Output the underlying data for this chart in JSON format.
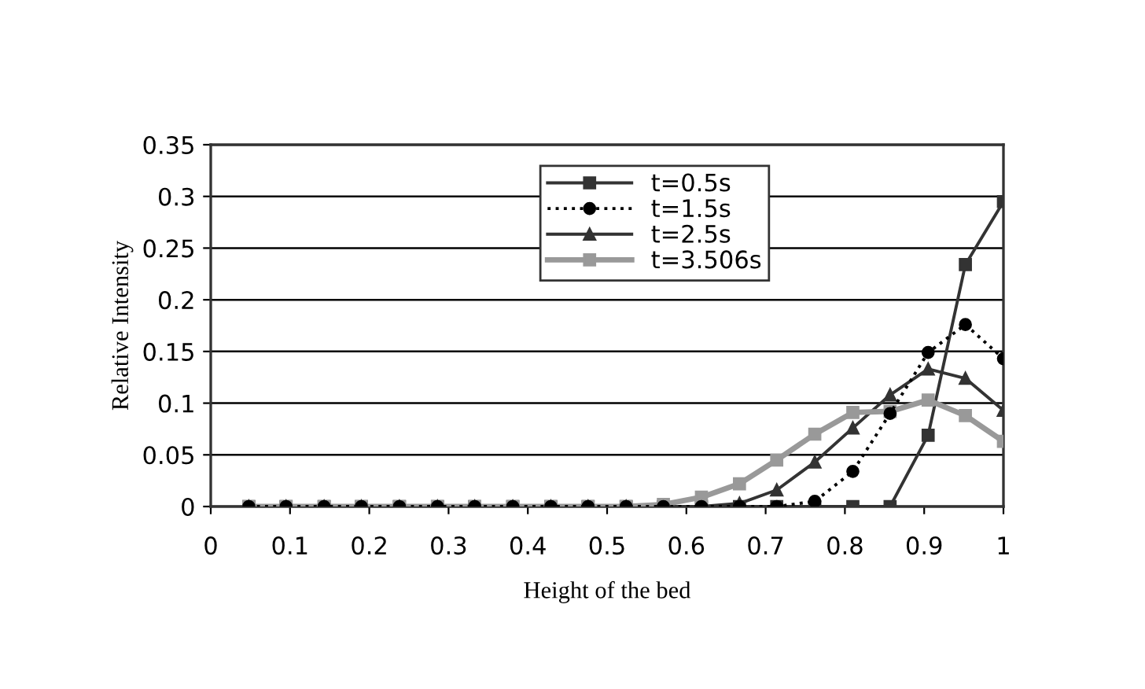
{
  "chart_data": {
    "type": "line",
    "xlabel": "Height of the bed",
    "ylabel": "Relative Intensity",
    "x": [
      0.048,
      0.095,
      0.143,
      0.19,
      0.238,
      0.286,
      0.333,
      0.381,
      0.429,
      0.476,
      0.524,
      0.571,
      0.619,
      0.667,
      0.714,
      0.762,
      0.81,
      0.857,
      0.905,
      0.952,
      1.0
    ],
    "series": [
      {
        "name": "t=0.5s",
        "color": "#333333",
        "marker": "square",
        "line_style": "solid",
        "values": [
          0,
          0,
          0,
          0,
          0,
          0,
          0,
          0,
          0,
          0,
          0,
          0,
          0,
          0,
          0,
          0,
          0,
          0,
          0.069,
          0.234,
          0.295
        ]
      },
      {
        "name": "t=1.5s",
        "color": "#000000",
        "marker": "circle",
        "line_style": "dotted",
        "values": [
          0,
          0,
          0,
          0,
          0,
          0,
          0,
          0,
          0,
          0,
          0,
          0,
          0,
          0,
          0,
          0.005,
          0.034,
          0.09,
          0.149,
          0.176,
          0.143
        ]
      },
      {
        "name": "t=2.5s",
        "color": "#333333",
        "marker": "triangle",
        "line_style": "solid",
        "values": [
          0,
          0,
          0,
          0,
          0,
          0,
          0,
          0,
          0,
          0,
          0,
          0,
          0,
          0.003,
          0.016,
          0.043,
          0.076,
          0.108,
          0.133,
          0.124,
          0.093
        ]
      },
      {
        "name": "t=3.506s",
        "color": "#999999",
        "marker": "square",
        "line_style": "solid",
        "values": [
          0,
          0,
          0,
          0,
          0,
          0,
          0,
          0,
          0,
          0,
          0,
          0.002,
          0.009,
          0.022,
          0.045,
          0.07,
          0.091,
          0.092,
          0.103,
          0.088,
          0.063
        ]
      }
    ],
    "xlim": [
      0,
      1
    ],
    "xticks": [
      0,
      0.1,
      0.2,
      0.3,
      0.4,
      0.5,
      0.6,
      0.7,
      0.8,
      0.9,
      1
    ],
    "ylim": [
      0,
      0.35
    ],
    "yticks": [
      0,
      0.05,
      0.1,
      0.15,
      0.2,
      0.25,
      0.3,
      0.35
    ],
    "grid": "y",
    "legend": "top"
  }
}
